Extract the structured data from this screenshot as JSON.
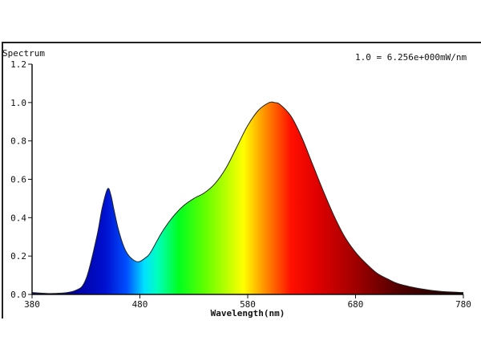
{
  "chart_data": {
    "type": "area",
    "title": "Spectrum",
    "annotation": "1.0 = 6.256e+000mW/nm",
    "xlabel": "Wavelength(nm)",
    "ylabel": "",
    "xlim": [
      380,
      780
    ],
    "ylim": [
      0,
      1.2
    ],
    "xticks": [
      "380",
      "480",
      "580",
      "680",
      "780"
    ],
    "yticks": [
      "0.0",
      "0.2",
      "0.4",
      "0.6",
      "0.8",
      "1.0",
      "1.2"
    ],
    "grid": false,
    "fill": "visible-spectrum gradient",
    "x": [
      380,
      400,
      420,
      430,
      440,
      445,
      450,
      453,
      456,
      460,
      465,
      470,
      478,
      485,
      490,
      500,
      510,
      520,
      530,
      540,
      550,
      560,
      570,
      580,
      590,
      600,
      605,
      610,
      620,
      630,
      640,
      650,
      660,
      670,
      680,
      690,
      700,
      710,
      720,
      740,
      760,
      780
    ],
    "y": [
      0.01,
      0.005,
      0.02,
      0.08,
      0.3,
      0.45,
      0.55,
      0.52,
      0.44,
      0.34,
      0.25,
      0.2,
      0.17,
      0.19,
      0.22,
      0.32,
      0.4,
      0.46,
      0.5,
      0.53,
      0.58,
      0.66,
      0.77,
      0.88,
      0.96,
      1.0,
      1.0,
      0.99,
      0.93,
      0.82,
      0.68,
      0.54,
      0.41,
      0.3,
      0.22,
      0.16,
      0.11,
      0.08,
      0.055,
      0.03,
      0.015,
      0.01
    ]
  }
}
